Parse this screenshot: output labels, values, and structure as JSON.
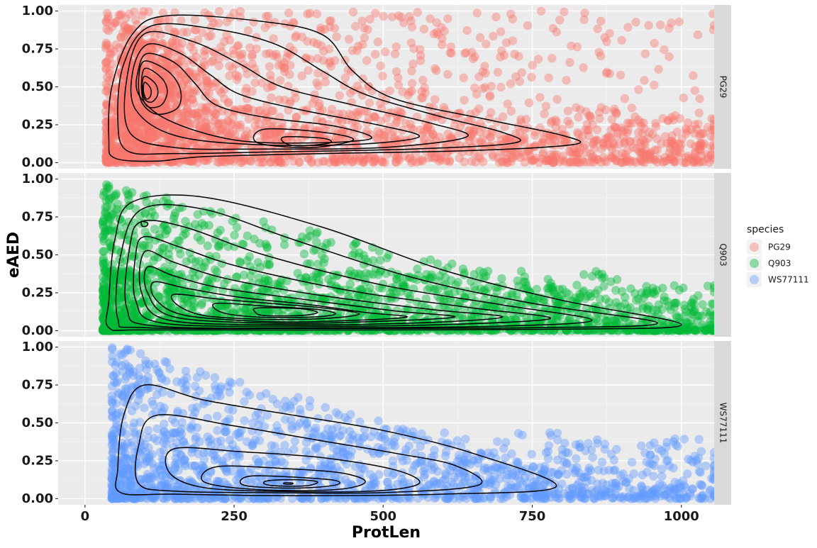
{
  "chart_data": {
    "type": "scatter",
    "xlabel": "ProtLen",
    "ylabel": "eAED",
    "xlim": [
      -45,
      1055
    ],
    "ylim": [
      -0.04,
      1.04
    ],
    "x_ticks": [
      0,
      250,
      500,
      750,
      1000
    ],
    "y_ticks": [
      0.0,
      0.25,
      0.5,
      0.75,
      1.0
    ],
    "y_tick_labels": [
      "0.00",
      "0.25",
      "0.50",
      "0.75",
      "1.00"
    ],
    "grid": true,
    "facet_by": "species",
    "legend": {
      "title": "species",
      "placement": "right",
      "entries": [
        "PG29",
        "Q903",
        "WS77111"
      ]
    },
    "series": [
      {
        "name": "PG29",
        "color": "#F8766D",
        "density_peaks": [
          {
            "x": 100,
            "y": 0.47
          },
          {
            "x": 360,
            "y": 0.13
          }
        ],
        "contour_levels": [
          [
            [
              140,
              0.97
            ],
            [
              300,
              0.93
            ],
            [
              400,
              0.84
            ],
            [
              450,
              0.6
            ],
            [
              520,
              0.42
            ],
            [
              680,
              0.28
            ],
            [
              800,
              0.18
            ],
            [
              820,
              0.12
            ],
            [
              650,
              0.08
            ],
            [
              400,
              0.06
            ],
            [
              200,
              0.04
            ],
            [
              120,
              0.01
            ],
            [
              50,
              0.03
            ],
            [
              40,
              0.15
            ],
            [
              45,
              0.5
            ],
            [
              80,
              0.85
            ]
          ],
          [
            [
              110,
              0.9
            ],
            [
              220,
              0.88
            ],
            [
              320,
              0.78
            ],
            [
              400,
              0.6
            ],
            [
              470,
              0.45
            ],
            [
              600,
              0.3
            ],
            [
              700,
              0.2
            ],
            [
              720,
              0.13
            ],
            [
              550,
              0.09
            ],
            [
              300,
              0.07
            ],
            [
              150,
              0.06
            ],
            [
              70,
              0.08
            ],
            [
              55,
              0.3
            ],
            [
              65,
              0.65
            ]
          ],
          [
            [
              100,
              0.85
            ],
            [
              180,
              0.8
            ],
            [
              260,
              0.65
            ],
            [
              330,
              0.5
            ],
            [
              450,
              0.38
            ],
            [
              580,
              0.26
            ],
            [
              640,
              0.17
            ],
            [
              500,
              0.1
            ],
            [
              300,
              0.09
            ],
            [
              150,
              0.1
            ],
            [
              75,
              0.2
            ],
            [
              70,
              0.55
            ]
          ],
          [
            [
              105,
              0.78
            ],
            [
              160,
              0.72
            ],
            [
              210,
              0.58
            ],
            [
              260,
              0.45
            ],
            [
              360,
              0.35
            ],
            [
              490,
              0.25
            ],
            [
              560,
              0.17
            ],
            [
              450,
              0.12
            ],
            [
              280,
              0.12
            ],
            [
              150,
              0.18
            ],
            [
              85,
              0.35
            ],
            [
              80,
              0.6
            ]
          ],
          [
            [
              105,
              0.72
            ],
            [
              150,
              0.66
            ],
            [
              185,
              0.52
            ],
            [
              220,
              0.38
            ],
            [
              300,
              0.3
            ],
            [
              420,
              0.24
            ],
            [
              480,
              0.16
            ],
            [
              380,
              0.13
            ],
            [
              250,
              0.15
            ],
            [
              140,
              0.28
            ],
            [
              90,
              0.45
            ],
            [
              90,
              0.62
            ]
          ],
          [
            [
              100,
              0.67
            ],
            [
              140,
              0.6
            ],
            [
              160,
              0.48
            ],
            [
              155,
              0.36
            ],
            [
              120,
              0.32
            ],
            [
              95,
              0.4
            ],
            [
              90,
              0.55
            ]
          ],
          [
            [
              100,
              0.62
            ],
            [
              128,
              0.56
            ],
            [
              138,
              0.47
            ],
            [
              128,
              0.38
            ],
            [
              105,
              0.37
            ],
            [
              95,
              0.47
            ]
          ],
          [
            [
              100,
              0.57
            ],
            [
              118,
              0.52
            ],
            [
              122,
              0.45
            ],
            [
              112,
              0.4
            ],
            [
              100,
              0.42
            ],
            [
              96,
              0.5
            ]
          ],
          [
            [
              100,
              0.53
            ],
            [
              110,
              0.49
            ],
            [
              110,
              0.44
            ],
            [
              103,
              0.42
            ],
            [
              98,
              0.47
            ]
          ],
          [
            [
              300,
              0.22
            ],
            [
              400,
              0.2
            ],
            [
              450,
              0.15
            ],
            [
              380,
              0.1
            ],
            [
              290,
              0.13
            ]
          ],
          [
            [
              335,
              0.17
            ],
            [
              400,
              0.16
            ],
            [
              410,
              0.13
            ],
            [
              360,
              0.11
            ],
            [
              335,
              0.13
            ]
          ]
        ]
      },
      {
        "name": "Q903",
        "color": "#00BA38",
        "density_peaks": [
          {
            "x": 100,
            "y": 0.7
          },
          {
            "x": 350,
            "y": 0.12
          }
        ],
        "contour_levels": [
          [
            [
              80,
              0.85
            ],
            [
              200,
              0.88
            ],
            [
              400,
              0.68
            ],
            [
              600,
              0.4
            ],
            [
              800,
              0.2
            ],
            [
              1000,
              0.04
            ],
            [
              800,
              0.01
            ],
            [
              400,
              0.005
            ],
            [
              100,
              0.005
            ],
            [
              40,
              0.02
            ],
            [
              40,
              0.2
            ],
            [
              50,
              0.6
            ]
          ],
          [
            [
              95,
              0.8
            ],
            [
              200,
              0.8
            ],
            [
              350,
              0.6
            ],
            [
              550,
              0.35
            ],
            [
              750,
              0.18
            ],
            [
              960,
              0.05
            ],
            [
              750,
              0.02
            ],
            [
              400,
              0.015
            ],
            [
              100,
              0.02
            ],
            [
              55,
              0.08
            ],
            [
              60,
              0.5
            ]
          ],
          [
            [
              95,
              0.72
            ],
            [
              170,
              0.68
            ],
            [
              300,
              0.5
            ],
            [
              500,
              0.3
            ],
            [
              700,
              0.17
            ],
            [
              850,
              0.07
            ],
            [
              700,
              0.03
            ],
            [
              400,
              0.02
            ],
            [
              120,
              0.03
            ],
            [
              70,
              0.15
            ],
            [
              75,
              0.55
            ]
          ],
          [
            [
              100,
              0.62
            ],
            [
              160,
              0.55
            ],
            [
              260,
              0.42
            ],
            [
              450,
              0.26
            ],
            [
              650,
              0.15
            ],
            [
              780,
              0.08
            ],
            [
              600,
              0.04
            ],
            [
              350,
              0.03
            ],
            [
              130,
              0.05
            ],
            [
              85,
              0.2
            ],
            [
              85,
              0.5
            ]
          ],
          [
            [
              100,
              0.52
            ],
            [
              150,
              0.45
            ],
            [
              240,
              0.34
            ],
            [
              400,
              0.23
            ],
            [
              580,
              0.14
            ],
            [
              700,
              0.09
            ],
            [
              550,
              0.05
            ],
            [
              330,
              0.04
            ],
            [
              140,
              0.07
            ],
            [
              95,
              0.25
            ]
          ],
          [
            [
              105,
              0.42
            ],
            [
              150,
              0.36
            ],
            [
              230,
              0.28
            ],
            [
              380,
              0.2
            ],
            [
              520,
              0.13
            ],
            [
              620,
              0.09
            ],
            [
              480,
              0.06
            ],
            [
              320,
              0.05
            ],
            [
              150,
              0.09
            ],
            [
              105,
              0.25
            ]
          ],
          [
            [
              115,
              0.32
            ],
            [
              170,
              0.28
            ],
            [
              260,
              0.22
            ],
            [
              380,
              0.17
            ],
            [
              470,
              0.12
            ],
            [
              540,
              0.09
            ],
            [
              430,
              0.065
            ],
            [
              310,
              0.06
            ],
            [
              170,
              0.1
            ],
            [
              120,
              0.2
            ]
          ],
          [
            [
              150,
              0.24
            ],
            [
              220,
              0.21
            ],
            [
              310,
              0.18
            ],
            [
              400,
              0.15
            ],
            [
              460,
              0.11
            ],
            [
              400,
              0.08
            ],
            [
              300,
              0.075
            ],
            [
              200,
              0.1
            ],
            [
              155,
              0.17
            ]
          ],
          [
            [
              220,
              0.18
            ],
            [
              310,
              0.16
            ],
            [
              390,
              0.14
            ],
            [
              420,
              0.11
            ],
            [
              380,
              0.09
            ],
            [
              290,
              0.09
            ],
            [
              230,
              0.12
            ]
          ],
          [
            [
              290,
              0.15
            ],
            [
              360,
              0.145
            ],
            [
              390,
              0.12
            ],
            [
              360,
              0.1
            ],
            [
              300,
              0.1
            ],
            [
              285,
              0.125
            ]
          ],
          [
            [
              95,
              0.72
            ],
            [
              105,
              0.71
            ],
            [
              103,
              0.69
            ],
            [
              96,
              0.69
            ]
          ]
        ]
      },
      {
        "name": "WS77111",
        "color": "#619CFF",
        "density_peaks": [
          {
            "x": 340,
            "y": 0.1
          }
        ],
        "contour_levels": [
          [
            [
              100,
              0.75
            ],
            [
              200,
              0.65
            ],
            [
              350,
              0.55
            ],
            [
              500,
              0.45
            ],
            [
              650,
              0.3
            ],
            [
              790,
              0.08
            ],
            [
              600,
              0.03
            ],
            [
              350,
              0.02
            ],
            [
              150,
              0.03
            ],
            [
              60,
              0.04
            ],
            [
              55,
              0.2
            ],
            [
              65,
              0.55
            ]
          ],
          [
            [
              120,
              0.55
            ],
            [
              250,
              0.48
            ],
            [
              400,
              0.38
            ],
            [
              520,
              0.3
            ],
            [
              620,
              0.22
            ],
            [
              660,
              0.09
            ],
            [
              500,
              0.04
            ],
            [
              300,
              0.04
            ],
            [
              150,
              0.05
            ],
            [
              90,
              0.1
            ],
            [
              90,
              0.35
            ]
          ],
          [
            [
              150,
              0.33
            ],
            [
              260,
              0.31
            ],
            [
              400,
              0.27
            ],
            [
              520,
              0.19
            ],
            [
              560,
              0.1
            ],
            [
              480,
              0.05
            ],
            [
              300,
              0.05
            ],
            [
              190,
              0.08
            ],
            [
              140,
              0.18
            ]
          ],
          [
            [
              220,
              0.21
            ],
            [
              330,
              0.2
            ],
            [
              430,
              0.17
            ],
            [
              470,
              0.11
            ],
            [
              420,
              0.06
            ],
            [
              290,
              0.06
            ],
            [
              200,
              0.11
            ]
          ],
          [
            [
              280,
              0.15
            ],
            [
              360,
              0.14
            ],
            [
              420,
              0.12
            ],
            [
              420,
              0.09
            ],
            [
              360,
              0.07
            ],
            [
              280,
              0.08
            ],
            [
              260,
              0.11
            ]
          ],
          [
            [
              310,
              0.12
            ],
            [
              360,
              0.125
            ],
            [
              390,
              0.11
            ],
            [
              370,
              0.085
            ],
            [
              320,
              0.085
            ],
            [
              300,
              0.1
            ]
          ],
          [
            [
              335,
              0.105
            ],
            [
              348,
              0.103
            ],
            [
              346,
              0.095
            ],
            [
              334,
              0.097
            ]
          ]
        ]
      }
    ]
  }
}
